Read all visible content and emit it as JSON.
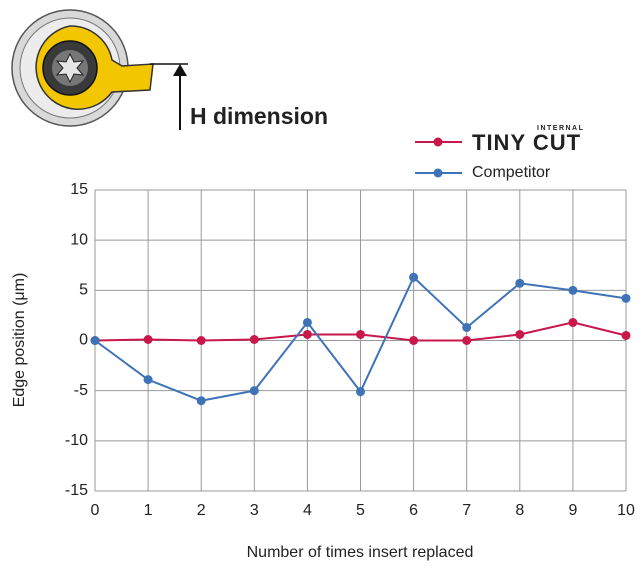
{
  "chart_data": {
    "type": "line",
    "annotation": "H dimension",
    "logo_tag": "INTERNAL",
    "x_label": "Number of times insert replaced",
    "y_label": "Edge position (μm)",
    "x": [
      0,
      1,
      2,
      3,
      4,
      5,
      6,
      7,
      8,
      9,
      10
    ],
    "series": [
      {
        "name": "TINY CUT",
        "color": "#c8174a",
        "values": [
          0,
          0.1,
          0,
          0.1,
          0.6,
          0.6,
          0,
          0,
          0.6,
          1.8,
          0.5
        ]
      },
      {
        "name": "Competitor",
        "color": "#3f73b8",
        "values": [
          0,
          -3.9,
          -6,
          -5,
          1.8,
          -5.1,
          6.3,
          1.3,
          5.7,
          5,
          4.2
        ]
      }
    ],
    "xlim": [
      0,
      10
    ],
    "xticks": [
      0,
      1,
      2,
      3,
      4,
      5,
      6,
      7,
      8,
      9,
      10
    ],
    "ylim": [
      -15,
      15
    ],
    "yticks": [
      -15,
      -10,
      -5,
      0,
      5,
      10,
      15
    ],
    "grid": true
  }
}
